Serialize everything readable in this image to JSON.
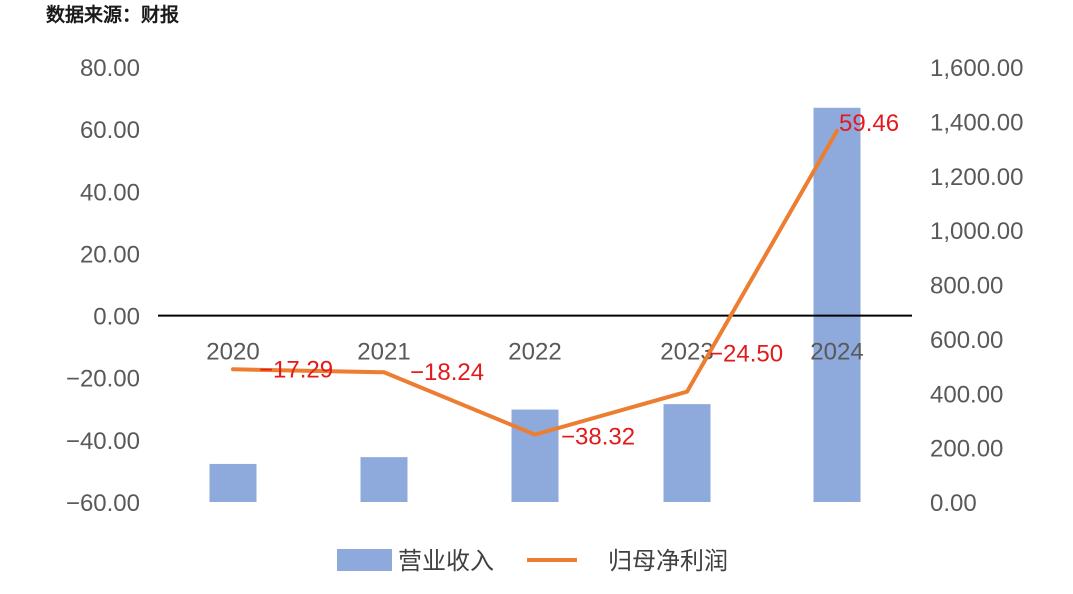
{
  "source_note": "数据来源：财报",
  "chart_data": {
    "type": "bar+line",
    "categories": [
      "2020",
      "2021",
      "2022",
      "2023",
      "2024"
    ],
    "bar_series": {
      "name": "营业收入",
      "axis": "right",
      "values": [
        140,
        165,
        340,
        360,
        1450
      ],
      "color": "#8eaadc"
    },
    "line_series": {
      "name": "归母净利润",
      "axis": "left",
      "values": [
        -17.29,
        -18.24,
        -38.32,
        -24.5,
        59.46
      ],
      "labels": [
        "-17.29",
        "-18.24",
        "-38.32",
        "-24.50",
        "59.46"
      ],
      "color": "#ed7d31",
      "label_color": "#e31a1c"
    },
    "left_axis": {
      "ylim": [
        -60,
        80
      ],
      "ticks": [
        "80.00",
        "60.00",
        "40.00",
        "20.00",
        "0.00",
        "-20.00",
        "-40.00",
        "-60.00"
      ],
      "tick_values": [
        80,
        60,
        40,
        20,
        0,
        -20,
        -40,
        -60
      ]
    },
    "right_axis": {
      "ylim": [
        0,
        1600
      ],
      "ticks": [
        "1,600.00",
        "1,400.00",
        "1,200.00",
        "1,000.00",
        "800.00",
        "600.00",
        "400.00",
        "200.00",
        "0.00"
      ],
      "tick_values": [
        1600,
        1400,
        1200,
        1000,
        800,
        600,
        400,
        200,
        0
      ]
    },
    "zero_line": true,
    "grid": false,
    "legend": "bottom"
  }
}
